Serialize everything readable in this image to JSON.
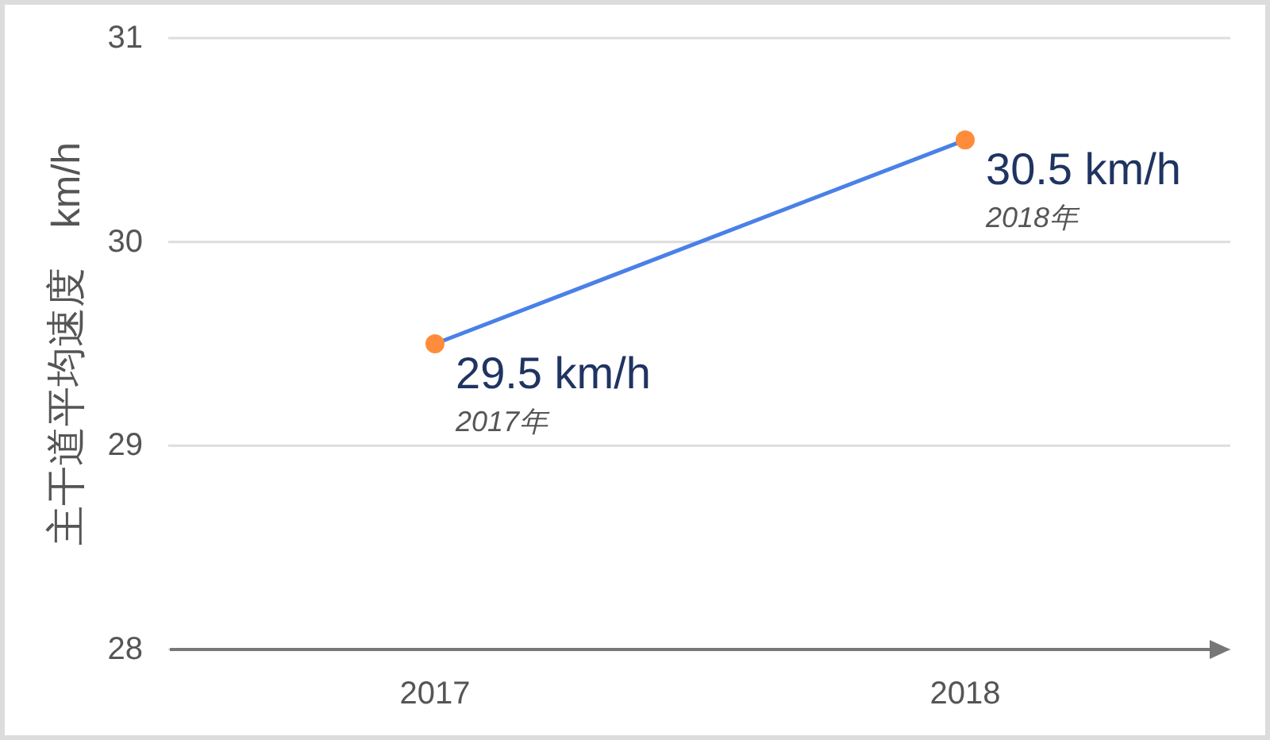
{
  "chart_data": {
    "type": "line",
    "ylabel": "主干道平均速度　km/h",
    "categories": [
      "2017",
      "2018"
    ],
    "series": [
      {
        "color": "#4a80e8",
        "colors": [
          "#ff8c3a",
          "#ff8c3a"
        ],
        "values": [
          29.5,
          30.5
        ],
        "value_labels": [
          "29.5 km/h",
          "30.5 km/h"
        ]
      }
    ],
    "annotations": [
      {
        "text": "2017年",
        "x": "2017",
        "y": 29.5
      },
      {
        "text": "2018年",
        "x": "2018",
        "y": 30.5
      }
    ],
    "ylim": [
      28,
      31
    ],
    "yticks": [
      28,
      29,
      30,
      31
    ],
    "grid": "y",
    "marker": "circle"
  }
}
